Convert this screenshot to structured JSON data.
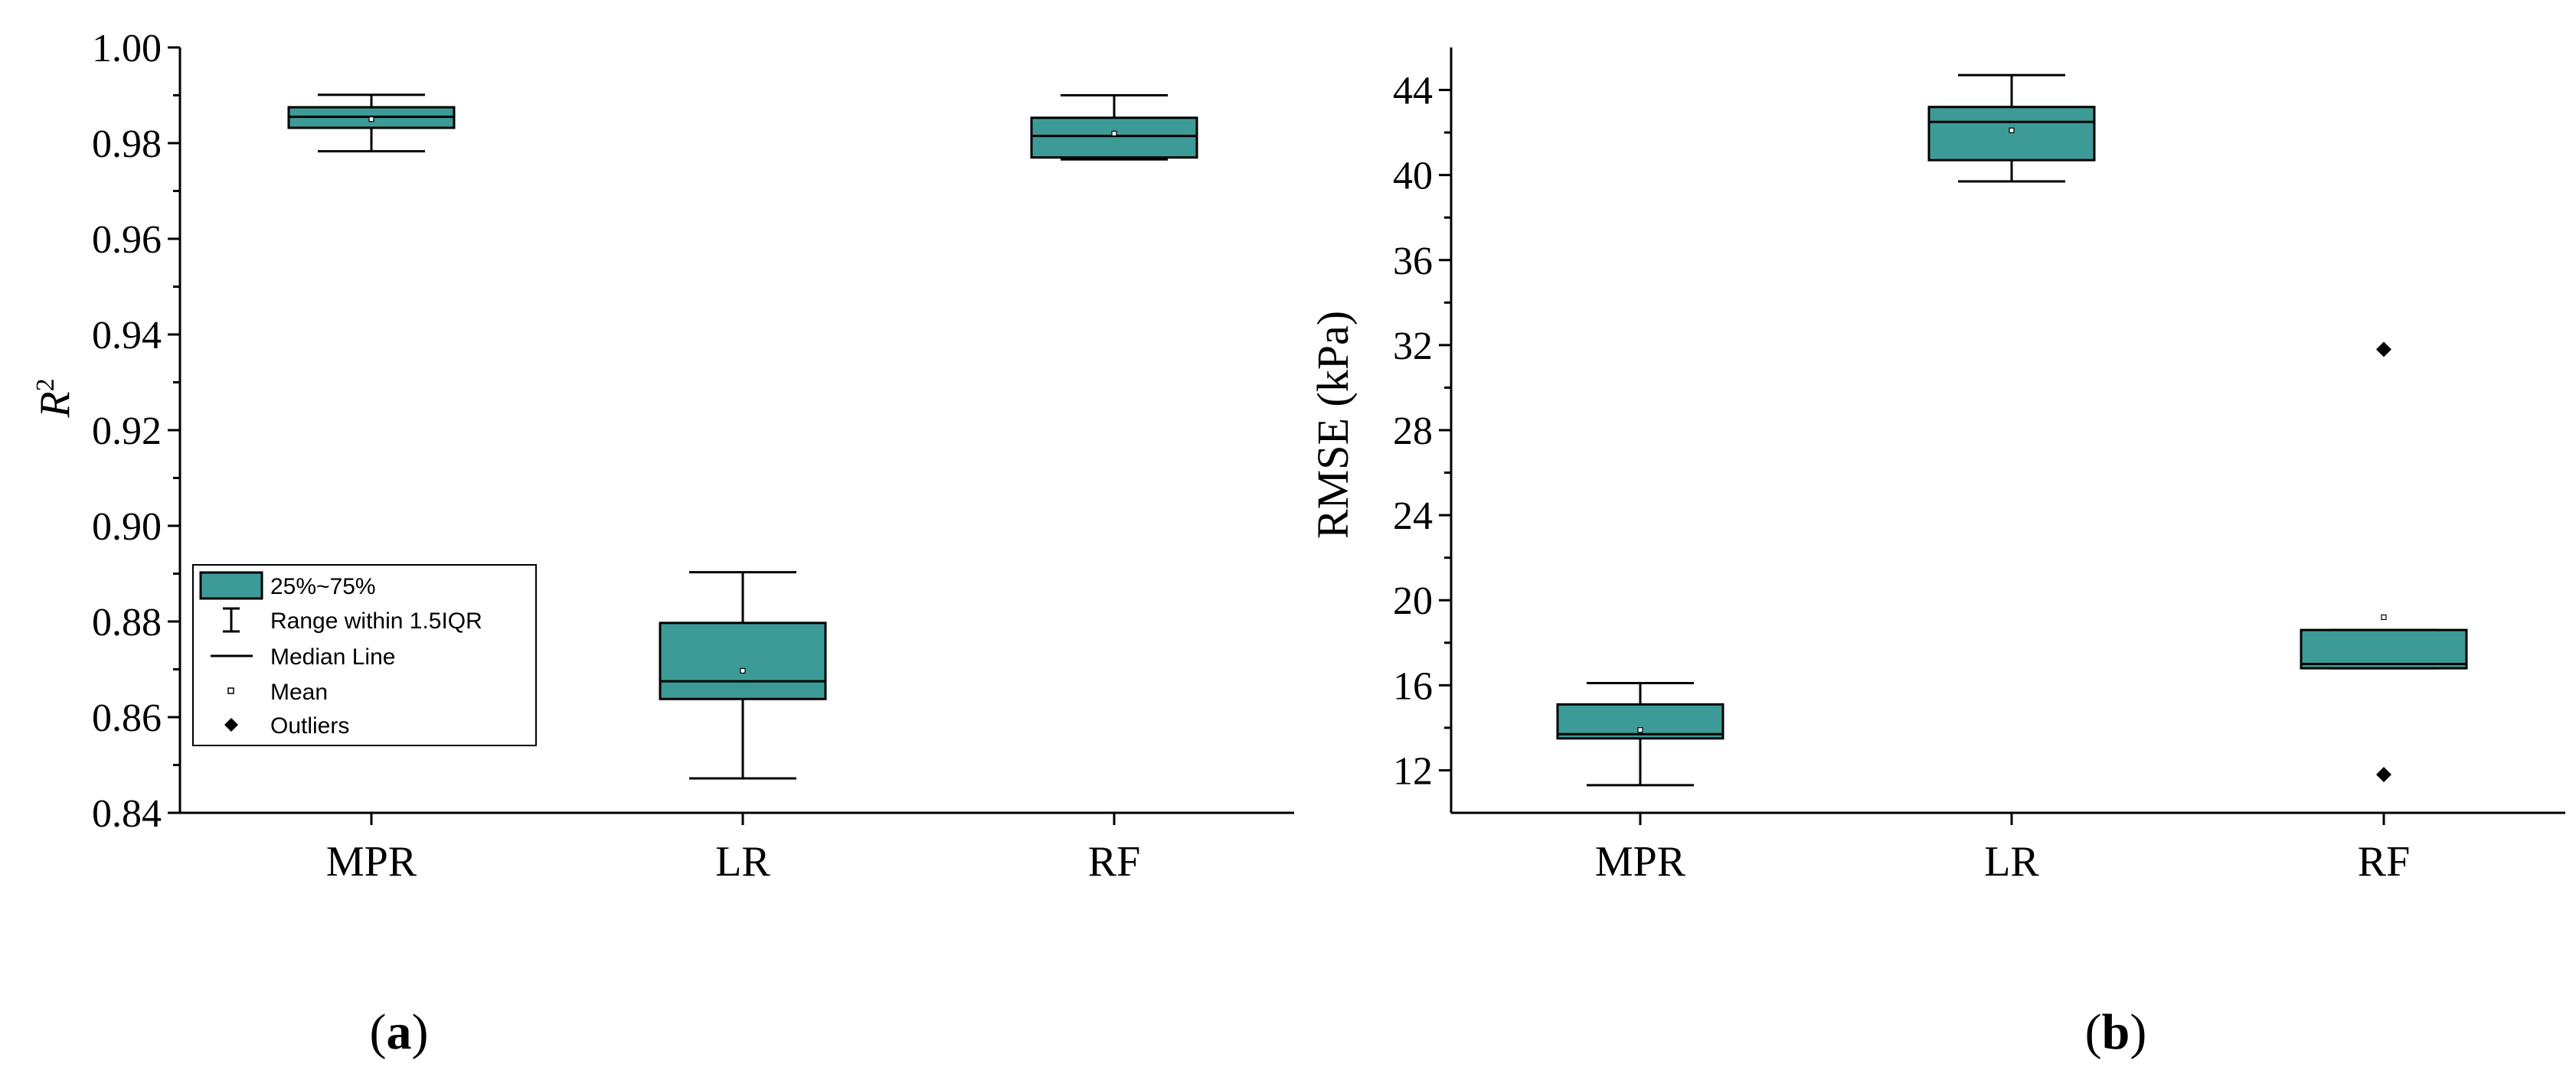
{
  "chart_data": [
    {
      "type": "box",
      "panel_label": "a",
      "ylabel": "R",
      "ylabel_sup": "2",
      "categories": [
        "MPR",
        "LR",
        "RF"
      ],
      "ylim": [
        0.84,
        1.0
      ],
      "yticks": [
        "0.84",
        "0.86",
        "0.88",
        "0.90",
        "0.92",
        "0.94",
        "0.96",
        "0.98",
        "1.00"
      ],
      "box_color": "#3c9b97",
      "boxes": [
        {
          "label": "MPR",
          "whisker_low": 0.9783,
          "q1": 0.9832,
          "median": 0.9855,
          "q3": 0.9875,
          "whisker_high": 0.9901,
          "mean": 0.985,
          "outliers": []
        },
        {
          "label": "LR",
          "whisker_low": 0.8472,
          "q1": 0.8638,
          "median": 0.8675,
          "q3": 0.8797,
          "whisker_high": 0.8903,
          "mean": 0.8697,
          "outliers": []
        },
        {
          "label": "RF",
          "whisker_low": 0.9766,
          "q1": 0.977,
          "median": 0.9815,
          "q3": 0.9853,
          "whisker_high": 0.99,
          "mean": 0.982,
          "outliers": []
        }
      ],
      "legend": {
        "position": "lower-left",
        "items": [
          {
            "symbol": "box",
            "label": "25%~75%"
          },
          {
            "symbol": "whisker",
            "label": "Range within 1.5IQR"
          },
          {
            "symbol": "line",
            "label": "Median Line"
          },
          {
            "symbol": "mean",
            "label": "Mean"
          },
          {
            "symbol": "outlier",
            "label": "Outliers"
          }
        ]
      }
    },
    {
      "type": "box",
      "panel_label": "b",
      "ylabel": "RMSE (kPa)",
      "categories": [
        "MPR",
        "LR",
        "RF"
      ],
      "ylim": [
        10,
        46
      ],
      "yticks": [
        "12",
        "16",
        "20",
        "24",
        "28",
        "32",
        "36",
        "40",
        "44"
      ],
      "box_color": "#3c9b97",
      "boxes": [
        {
          "label": "MPR",
          "whisker_low": 11.3,
          "q1": 13.5,
          "median": 13.7,
          "q3": 15.1,
          "whisker_high": 16.1,
          "mean": 13.9,
          "outliers": []
        },
        {
          "label": "LR",
          "whisker_low": 39.7,
          "q1": 40.7,
          "median": 42.5,
          "q3": 43.2,
          "whisker_high": 44.7,
          "mean": 42.1,
          "outliers": []
        },
        {
          "label": "RF",
          "whisker_low": 16.8,
          "q1": 16.8,
          "median": 17.0,
          "q3": 18.6,
          "whisker_high": 18.6,
          "mean": 19.2,
          "outliers": [
            31.8,
            11.8
          ]
        }
      ]
    }
  ]
}
